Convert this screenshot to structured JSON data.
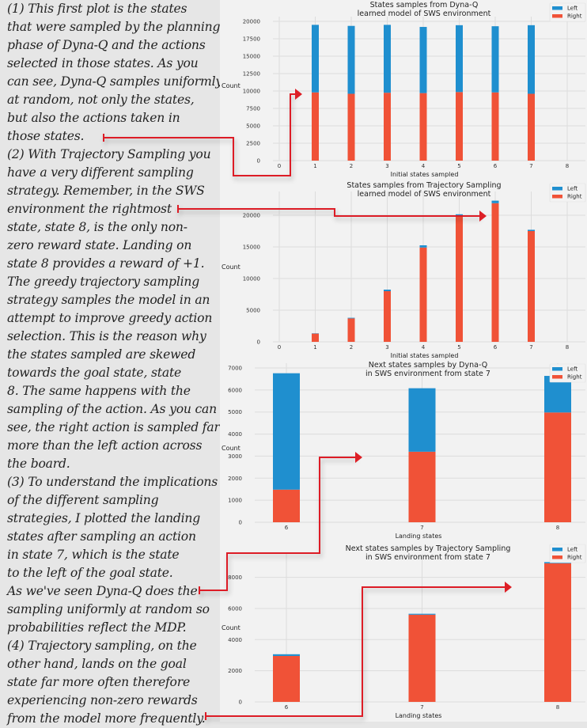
{
  "explanation": {
    "paragraphs": [
      {
        "lines": [
          "(1) This first plot is the states",
          "that were sampled by the planning",
          "phase of Dyna-Q and the actions",
          "selected in those states. As you",
          "can see, Dyna-Q samples uniformly",
          "at random, not only the states,",
          "but also the actions taken in",
          "those states."
        ]
      },
      {
        "lines": [
          "(2) With Trajectory Sampling you",
          "have a very different sampling",
          "strategy. Remember, in the SWS",
          "environment the rightmost",
          "state, state 8, is the only non-",
          "zero reward state. Landing on",
          "state 8 provides a reward of +1.",
          "The greedy trajectory sampling",
          "strategy samples the model in an",
          "attempt to improve greedy action",
          "selection. This is the reason why",
          "the states sampled are skewed",
          "towards the goal state, state",
          "8. The same happens with the",
          "sampling of the action. As you can",
          "see, the right action is sampled far",
          "more than the left action across",
          "the board."
        ]
      },
      {
        "lines": [
          "(3) To understand the implications",
          "of the different sampling",
          "strategies, I plotted the landing",
          "states after sampling an action",
          "in state 7, which is the state",
          "to the left of the goal state.",
          "As we've seen Dyna-Q does the",
          "sampling uniformly at random so",
          "probabilities reflect the MDP."
        ]
      },
      {
        "lines": [
          "(4) Trajectory sampling, on the",
          "other hand, lands on the goal",
          "state far more often therefore",
          "experiencing non-zero rewards",
          "from the model more frequently."
        ]
      }
    ]
  },
  "colors": {
    "left": "#1f8fcf",
    "right": "#f05237",
    "annotation": "#dd1f26",
    "grid": "#dcdcdc",
    "panel": "#f2f2f2"
  },
  "chart_data": [
    {
      "type": "bar",
      "stacked": true,
      "title": "States samples from Dyna-Q\nlearned model of SWS environment",
      "title_lines": [
        "States samples from Dyna-Q",
        "learned model of SWS environment"
      ],
      "xlabel": "Initial states sampled",
      "ylabel": "Count",
      "categories": [
        "0",
        "1",
        "2",
        "3",
        "4",
        "5",
        "6",
        "7",
        "8"
      ],
      "series": [
        {
          "name": "Right",
          "values": [
            0,
            9800,
            9600,
            9750,
            9700,
            9850,
            9800,
            9600,
            0
          ]
        },
        {
          "name": "Left",
          "values": [
            0,
            9700,
            9750,
            9750,
            9500,
            9600,
            9500,
            9850,
            0
          ]
        }
      ],
      "ylim": [
        0,
        20000
      ],
      "yticks": [
        0,
        2500,
        5000,
        7500,
        10000,
        12500,
        15000,
        17500,
        20000
      ],
      "grid": true,
      "legend": {
        "position": "top-right",
        "entries": [
          "Left",
          "Right"
        ]
      }
    },
    {
      "type": "bar",
      "stacked": true,
      "title": "States samples from Trajectory Sampling\nlearned model of SWS environment",
      "title_lines": [
        "States samples from Trajectory Sampling",
        "learned model of SWS environment"
      ],
      "xlabel": "Initial states sampled",
      "ylabel": "Count",
      "categories": [
        "0",
        "1",
        "2",
        "3",
        "4",
        "5",
        "6",
        "7",
        "8"
      ],
      "series": [
        {
          "name": "Right",
          "values": [
            0,
            1300,
            3700,
            8000,
            14900,
            19900,
            21900,
            17500,
            0
          ]
        },
        {
          "name": "Left",
          "values": [
            0,
            50,
            100,
            250,
            350,
            250,
            400,
            200,
            0
          ]
        }
      ],
      "ylim": [
        0,
        23000
      ],
      "yticks": [
        0,
        5000,
        10000,
        15000,
        20000
      ],
      "grid": true,
      "legend": {
        "position": "top-right",
        "entries": [
          "Left",
          "Right"
        ]
      }
    },
    {
      "type": "bar",
      "stacked": true,
      "title": "Next states samples by Dyna-Q\nin SWS environment from state 7",
      "title_lines": [
        "Next states samples by Dyna-Q",
        "in SWS environment from state 7"
      ],
      "xlabel": "Landing states",
      "ylabel": "Count",
      "categories": [
        "6",
        "7",
        "8"
      ],
      "series": [
        {
          "name": "Right",
          "values": [
            1480,
            3200,
            4980
          ]
        },
        {
          "name": "Left",
          "values": [
            5280,
            2880,
            1660
          ]
        }
      ],
      "ylim": [
        0,
        7000
      ],
      "yticks": [
        0,
        1000,
        2000,
        3000,
        4000,
        5000,
        6000,
        7000
      ],
      "grid": true,
      "legend": {
        "position": "top-right",
        "entries": [
          "Left",
          "Right"
        ]
      }
    },
    {
      "type": "bar",
      "stacked": true,
      "title": "Next states samples by Trajectory Sampling\nin SWS environment from state 7",
      "title_lines": [
        "Next states samples by Trajectory Sampling",
        "in SWS environment from state 7"
      ],
      "xlabel": "Landing states",
      "ylabel": "Count",
      "categories": [
        "6",
        "7",
        "8"
      ],
      "series": [
        {
          "name": "Right",
          "values": [
            2950,
            5600,
            8900
          ]
        },
        {
          "name": "Left",
          "values": [
            110,
            60,
            80
          ]
        }
      ],
      "ylim": [
        0,
        9200
      ],
      "yticks": [
        0,
        2000,
        4000,
        6000,
        8000
      ],
      "grid": true,
      "legend": {
        "position": "top-right",
        "entries": [
          "Left",
          "Right"
        ]
      }
    }
  ]
}
